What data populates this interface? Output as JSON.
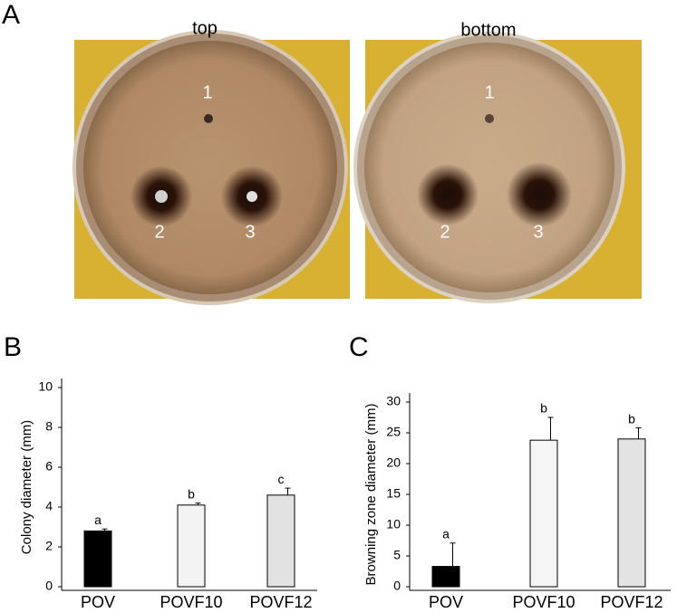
{
  "panel_a": {
    "label": "A",
    "photos": [
      {
        "title": "top",
        "numbers": [
          "1",
          "2",
          "3"
        ]
      },
      {
        "title": "bottom",
        "numbers": [
          "1",
          "2",
          "3"
        ]
      }
    ]
  },
  "chart_data": [
    {
      "type": "bar",
      "panel_label": "B",
      "ylabel": "Colony diameter (mm)",
      "categories": [
        "POV",
        "POVF10",
        "POVF12"
      ],
      "values": [
        2.8,
        4.1,
        4.6
      ],
      "errors": [
        0.1,
        0.1,
        0.35
      ],
      "significance_letters": [
        "a",
        "b",
        "c"
      ],
      "colors": [
        "#000000",
        "#f3f3f3",
        "#e2e2e2"
      ],
      "ylim": [
        0,
        10
      ],
      "yticks": [
        0,
        2,
        4,
        6,
        8,
        10
      ],
      "grid": false
    },
    {
      "type": "bar",
      "panel_label": "C",
      "ylabel": "Browning zone diameter (mm)",
      "categories": [
        "POV",
        "POVF10",
        "POVF12"
      ],
      "values": [
        3.3,
        23.8,
        24
      ],
      "errors": [
        3.8,
        3.7,
        1.8
      ],
      "significance_letters": [
        "a",
        "b",
        "b"
      ],
      "colors": [
        "#000000",
        "#f5f5f5",
        "#e3e3e3"
      ],
      "ylim": [
        0,
        30
      ],
      "yticks": [
        0,
        5,
        10,
        15,
        20,
        25,
        30
      ],
      "grid": false
    }
  ]
}
